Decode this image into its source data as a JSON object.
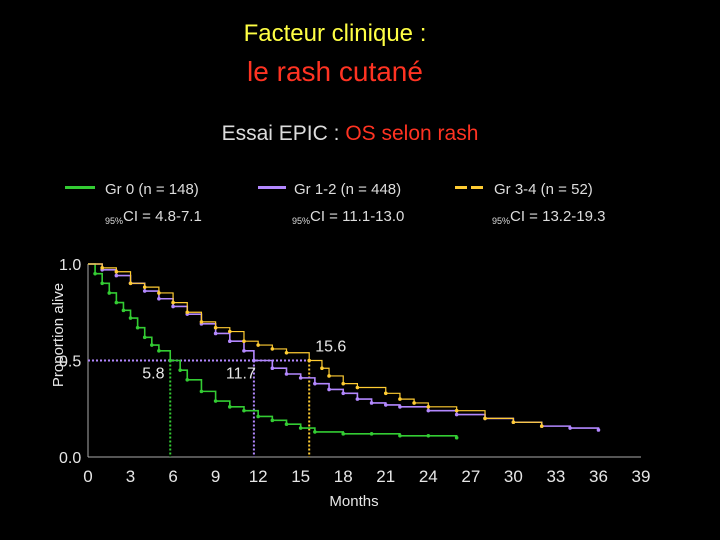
{
  "header": {
    "title_line1": "Facteur clinique :",
    "title_line2": "le rash cutané",
    "subtitle_part1": "Essai EPIC : ",
    "subtitle_part2": "OS selon rash"
  },
  "legend": [
    {
      "label": "Gr 0 (n = 148)",
      "ci_prefix": "95%",
      "ci_text": "CI = 4.8-7.1",
      "color": "#33cc33"
    },
    {
      "label": "Gr 1-2 (n = 448)",
      "ci_prefix": "95%",
      "ci_text": "CI = 11.1-13.0",
      "color": "#b388ff"
    },
    {
      "label": "Gr 3-4 (n = 52)",
      "ci_prefix": "95%",
      "ci_text": "CI = 13.2-19.3",
      "color": "#ffcc33"
    }
  ],
  "chart_data": {
    "type": "line",
    "title": "Essai EPIC : OS selon rash",
    "xlabel": "Months",
    "ylabel": "Proportion alive",
    "xlim": [
      0,
      39
    ],
    "ylim": [
      0,
      1
    ],
    "x_ticks": [
      "0",
      "3",
      "6",
      "9",
      "12",
      "15",
      "18",
      "21",
      "24",
      "27",
      "30",
      "33",
      "36",
      "39"
    ],
    "y_ticks": [
      "0.0",
      "0.5",
      "1.0"
    ],
    "medians": [
      {
        "series": "Gr 0 (n = 148)",
        "value": 5.8,
        "label": "5.8"
      },
      {
        "series": "Gr 1-2 (n = 448)",
        "value": 11.7,
        "label": "11.7"
      },
      {
        "series": "Gr 3-4 (n = 52)",
        "value": 15.6,
        "label": "15.6"
      }
    ],
    "series": [
      {
        "name": "Gr 0 (n = 148)",
        "color": "#33cc33",
        "x": [
          0,
          0.5,
          1,
          1.5,
          2,
          2.5,
          3,
          3.5,
          4,
          4.5,
          5,
          5.8,
          6.5,
          7,
          8,
          9,
          10,
          11,
          12,
          13,
          14,
          15,
          16,
          18,
          20,
          22,
          24,
          26
        ],
        "y": [
          1.0,
          0.95,
          0.9,
          0.85,
          0.8,
          0.76,
          0.72,
          0.67,
          0.62,
          0.58,
          0.55,
          0.5,
          0.45,
          0.4,
          0.34,
          0.29,
          0.26,
          0.24,
          0.21,
          0.19,
          0.17,
          0.15,
          0.13,
          0.12,
          0.12,
          0.11,
          0.11,
          0.1
        ]
      },
      {
        "name": "Gr 1-2 (n = 448)",
        "color": "#b388ff",
        "x": [
          0,
          1,
          2,
          3,
          4,
          5,
          6,
          7,
          8,
          9,
          10,
          11,
          11.7,
          13,
          14,
          15,
          16,
          17,
          18,
          19,
          20,
          21,
          22,
          24,
          26,
          28,
          30,
          32,
          34,
          36
        ],
        "y": [
          1.0,
          0.97,
          0.94,
          0.9,
          0.86,
          0.82,
          0.78,
          0.74,
          0.69,
          0.64,
          0.6,
          0.55,
          0.5,
          0.46,
          0.43,
          0.41,
          0.38,
          0.35,
          0.33,
          0.3,
          0.28,
          0.27,
          0.26,
          0.24,
          0.22,
          0.2,
          0.18,
          0.16,
          0.15,
          0.14
        ]
      },
      {
        "name": "Gr 3-4 (n = 52)",
        "color": "#ffcc33",
        "x": [
          0,
          1,
          2,
          3,
          4,
          5,
          6,
          7,
          8,
          9,
          10,
          11,
          12,
          13,
          14,
          15.6,
          16.5,
          17,
          18,
          19,
          21,
          22,
          23,
          24,
          26,
          28,
          30,
          32
        ],
        "y": [
          1.0,
          0.98,
          0.96,
          0.9,
          0.88,
          0.85,
          0.8,
          0.75,
          0.7,
          0.67,
          0.65,
          0.6,
          0.58,
          0.56,
          0.54,
          0.5,
          0.46,
          0.42,
          0.38,
          0.36,
          0.33,
          0.3,
          0.28,
          0.26,
          0.24,
          0.2,
          0.18,
          0.16
        ]
      }
    ]
  }
}
